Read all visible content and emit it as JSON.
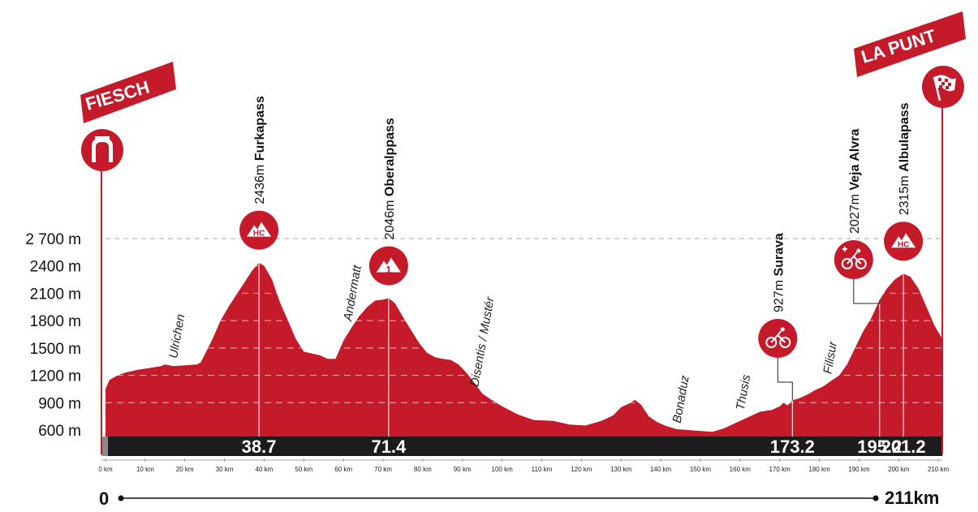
{
  "start_town": "FIESCH",
  "finish_town": "LA PUNT",
  "distance_start": "0",
  "distance_end": "211km",
  "colors": {
    "profile": "#c41a2a",
    "bar": "#1c1c1c",
    "accent": "#c41a2a"
  },
  "icons": {
    "start": "start-arch-icon",
    "finish": "checkered-flag-icon"
  },
  "chart_data": {
    "type": "area",
    "title": "",
    "xlabel": "",
    "ylabel": "",
    "xlim": [
      0,
      211
    ],
    "ylim": [
      450,
      2700
    ],
    "grid": true,
    "y_ticks": [
      600,
      900,
      1200,
      1500,
      1800,
      2100,
      2400,
      2700
    ],
    "y_tick_labels": [
      "600 m",
      "900 m",
      "1200 m",
      "1500 m",
      "1800 m",
      "2100 m",
      "2400 m",
      "2 700 m"
    ],
    "x_ticks": [
      0,
      10,
      20,
      30,
      40,
      50,
      60,
      70,
      80,
      90,
      100,
      110,
      120,
      130,
      140,
      150,
      160,
      170,
      180,
      190,
      200,
      210
    ],
    "x_tick_labels": [
      "0 km",
      "10 km",
      "20 km",
      "30 km",
      "40 km",
      "50 km",
      "60 km",
      "70 km",
      "80 km",
      "90 km",
      "100 km",
      "110 km",
      "120 km",
      "130 km",
      "140 km",
      "150 km",
      "160 km",
      "170 km",
      "180 km",
      "190 km",
      "200 km",
      "210 km"
    ],
    "x": [
      0,
      1,
      3,
      5,
      8,
      11,
      14,
      15,
      17,
      20,
      23,
      24,
      27,
      29,
      31,
      34,
      37,
      38.7,
      40,
      42,
      44,
      46,
      48,
      50,
      52,
      54,
      56,
      58,
      60,
      62,
      64,
      66,
      68,
      70,
      71.4,
      73,
      75,
      77,
      79,
      81,
      83,
      85,
      87,
      89,
      91,
      93,
      95,
      97,
      100,
      104,
      108,
      113,
      117,
      121,
      125,
      128,
      130,
      132,
      133.5,
      135,
      137,
      139,
      141,
      144,
      147,
      150,
      153,
      156,
      158,
      160,
      162,
      165,
      168,
      170,
      171,
      172,
      173.2,
      175,
      177,
      179,
      181,
      183,
      185,
      187,
      189,
      191,
      193,
      195.2,
      197,
      199,
      201.2,
      203,
      205,
      207,
      209,
      211
    ],
    "y": [
      1050,
      1150,
      1200,
      1230,
      1260,
      1280,
      1300,
      1320,
      1300,
      1310,
      1320,
      1340,
      1600,
      1800,
      1950,
      2150,
      2350,
      2436,
      2400,
      2250,
      2000,
      1800,
      1600,
      1460,
      1440,
      1420,
      1380,
      1380,
      1580,
      1720,
      1850,
      1950,
      2020,
      2030,
      2046,
      1990,
      1840,
      1700,
      1560,
      1450,
      1400,
      1380,
      1370,
      1320,
      1230,
      1120,
      1000,
      940,
      860,
      770,
      710,
      700,
      660,
      650,
      700,
      760,
      850,
      890,
      930,
      880,
      750,
      690,
      650,
      610,
      600,
      590,
      580,
      620,
      660,
      700,
      740,
      800,
      820,
      860,
      900,
      870,
      927,
      950,
      990,
      1040,
      1080,
      1140,
      1200,
      1320,
      1500,
      1680,
      1820,
      2027,
      2150,
      2250,
      2315,
      2280,
      2150,
      1950,
      1750,
      1600
    ],
    "annotations": {
      "climbs": [
        {
          "km": 38.7,
          "name": "Furkapass",
          "altitude": "2436m",
          "category": "HC"
        },
        {
          "km": 71.4,
          "name": "Oberalppass",
          "altitude": "2046m",
          "category": "1"
        },
        {
          "km": 173.2,
          "name": "Surava",
          "altitude": "927m",
          "category": "sprint"
        },
        {
          "km": 195.2,
          "name": "Veja Alvra",
          "altitude": "2027m",
          "category": "bonus-sprint"
        },
        {
          "km": 201.2,
          "name": "Albulapass",
          "altitude": "2315m",
          "category": "HC"
        }
      ],
      "km_markers": [
        "38.7",
        "71.4",
        "173.2",
        "195.2",
        "201.2"
      ],
      "towns": [
        {
          "km": 18,
          "name": "Ulrichen"
        },
        {
          "km": 62,
          "name": "Andermatt"
        },
        {
          "km": 94,
          "name": "Disentis / Mustér"
        },
        {
          "km": 145,
          "name": "Bonaduz"
        },
        {
          "km": 161,
          "name": "Thusis"
        },
        {
          "km": 183,
          "name": "Filisur"
        }
      ]
    }
  }
}
